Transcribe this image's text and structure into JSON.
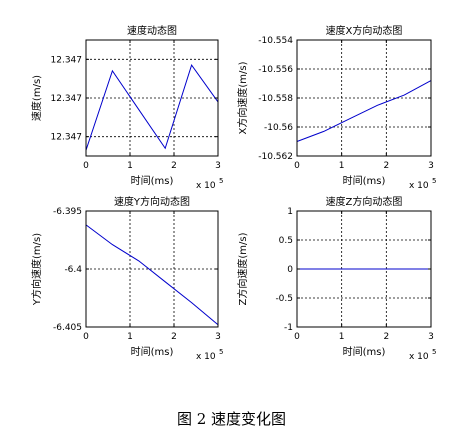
{
  "caption": "图 2  速度变化图",
  "colors": {
    "line": "#0000cc",
    "axis": "#000000",
    "grid": "#000000",
    "background": "#ffffff"
  },
  "chart_data": [
    {
      "type": "line",
      "title": "速度动态图",
      "xlabel": "时间(ms)",
      "ylabel": "速度(m/s)",
      "x_multiplier": "x 10",
      "x_exponent": "5",
      "xlim": [
        0,
        3
      ],
      "ylim": [
        0,
        3
      ],
      "xticks": [
        0,
        1,
        2,
        3
      ],
      "xtick_labels": [
        "0",
        "1",
        "2",
        "3"
      ],
      "yticks": [
        0.5,
        1.5,
        2.5
      ],
      "ytick_labels": [
        "12.347",
        "12.347",
        "12.347"
      ],
      "grid": true,
      "series": [
        {
          "x": [
            0,
            0.6,
            1.8,
            2.4,
            3.0
          ],
          "y": [
            0.15,
            2.2,
            0.2,
            2.35,
            1.4
          ]
        }
      ]
    },
    {
      "type": "line",
      "title": "速度X方向动态图",
      "xlabel": "时间(ms)",
      "ylabel": "X方向速度(m/s)",
      "x_multiplier": "x 10",
      "x_exponent": "5",
      "xlim": [
        0,
        3
      ],
      "ylim": [
        -10.562,
        -10.554
      ],
      "xticks": [
        0,
        1,
        2,
        3
      ],
      "xtick_labels": [
        "0",
        "1",
        "2",
        "3"
      ],
      "yticks": [
        -10.562,
        -10.56,
        -10.558,
        -10.556,
        -10.554
      ],
      "ytick_labels": [
        "-10.562",
        "-10.56",
        "-10.558",
        "-10.556",
        "-10.554"
      ],
      "grid": true,
      "series": [
        {
          "x": [
            0,
            0.6,
            1.2,
            1.8,
            2.4,
            3.0
          ],
          "y": [
            -10.561,
            -10.5603,
            -10.5594,
            -10.5585,
            -10.5578,
            -10.5568
          ]
        }
      ]
    },
    {
      "type": "line",
      "title": "速度Y方向动态图",
      "xlabel": "时间(ms)",
      "ylabel": "Y方向速度(m/s)",
      "x_multiplier": "x 10",
      "x_exponent": "5",
      "xlim": [
        0,
        3
      ],
      "ylim": [
        -6.405,
        -6.395
      ],
      "xticks": [
        0,
        1,
        2,
        3
      ],
      "xtick_labels": [
        "0",
        "1",
        "2",
        "3"
      ],
      "yticks": [
        -6.405,
        -6.4,
        -6.395
      ],
      "ytick_labels": [
        "-6.405",
        "-6.4",
        "-6.395"
      ],
      "grid": true,
      "series": [
        {
          "x": [
            0,
            0.6,
            1.2,
            1.8,
            2.4,
            3.0
          ],
          "y": [
            -6.3962,
            -6.3979,
            -6.3993,
            -6.4011,
            -6.4029,
            -6.4048
          ]
        }
      ]
    },
    {
      "type": "line",
      "title": "速度Z方向动态图",
      "xlabel": "时间(ms)",
      "ylabel": "Z方向速度(m/s)",
      "x_multiplier": "x 10",
      "x_exponent": "5",
      "xlim": [
        0,
        3
      ],
      "ylim": [
        -1,
        1
      ],
      "xticks": [
        0,
        1,
        2,
        3
      ],
      "xtick_labels": [
        "0",
        "1",
        "2",
        "3"
      ],
      "yticks": [
        -1,
        -0.5,
        0,
        0.5,
        1
      ],
      "ytick_labels": [
        "-1",
        "-0.5",
        "0",
        "0.5",
        "1"
      ],
      "grid": true,
      "series": [
        {
          "x": [
            0,
            3
          ],
          "y": [
            0,
            0
          ]
        }
      ]
    }
  ]
}
